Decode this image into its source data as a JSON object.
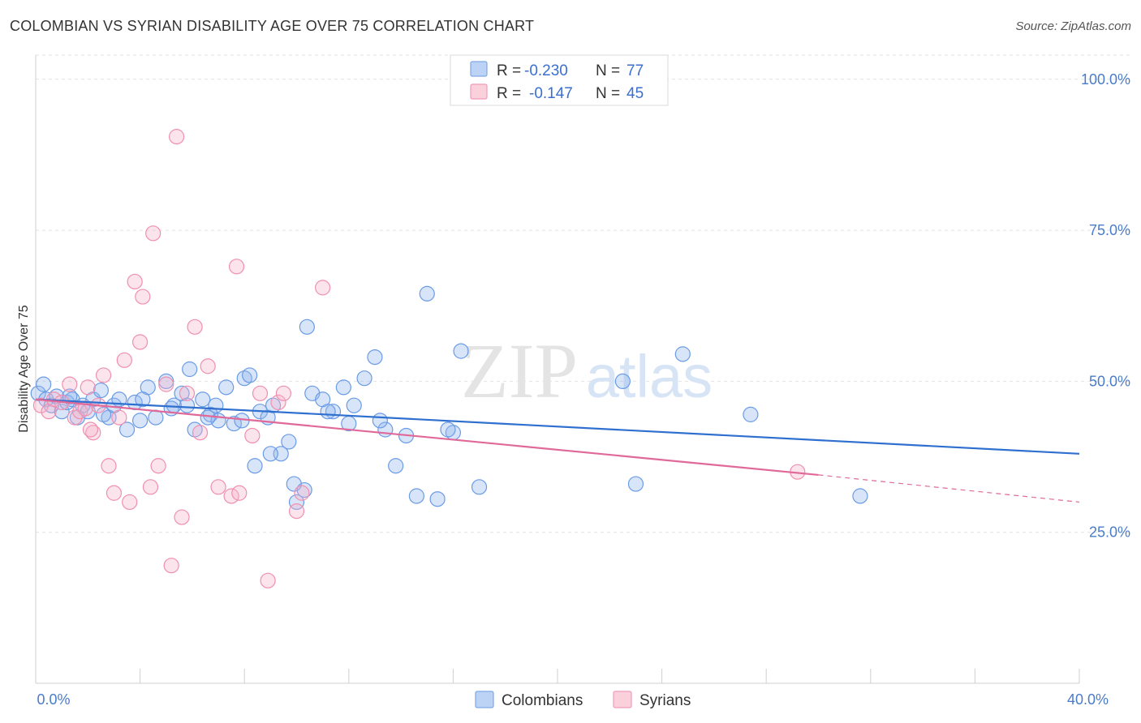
{
  "title": "COLOMBIAN VS SYRIAN DISABILITY AGE OVER 75 CORRELATION CHART",
  "source": "Source: ZipAtlas.com",
  "watermark": {
    "zip": "ZIP",
    "atlas": "atlas"
  },
  "legend": {
    "rows": [
      {
        "r_label": "R =",
        "r_value": "-0.230",
        "n_label": "N =",
        "n_value": "77",
        "color": "#8fb5ef"
      },
      {
        "r_label": "R =",
        "r_value": "-0.147",
        "n_label": "N =",
        "n_value": "45",
        "color": "#f5b3c8"
      }
    ]
  },
  "bottom_legend": [
    "Colombians",
    "Syrians"
  ],
  "chart_data": {
    "type": "scatter",
    "ylabel": "Disability Age Over 75",
    "xlim": [
      0,
      40
    ],
    "ylim": [
      0,
      104
    ],
    "x_tick_labels": [
      "0.0%",
      "40.0%"
    ],
    "y_ticks": [
      25,
      50,
      75,
      100
    ],
    "y_tick_labels": [
      "25.0%",
      "50.0%",
      "75.0%",
      "100.0%"
    ],
    "grid": true,
    "legend_position": "top-center",
    "series": [
      {
        "name": "Colombians",
        "color": "#6a9be6",
        "trend": {
          "x": [
            0,
            40
          ],
          "y": [
            47.0,
            38.0
          ]
        },
        "points": [
          [
            0.1,
            48
          ],
          [
            0.4,
            47
          ],
          [
            0.6,
            46
          ],
          [
            0.8,
            47.5
          ],
          [
            1.0,
            45
          ],
          [
            1.2,
            46.5
          ],
          [
            1.4,
            47
          ],
          [
            1.6,
            44
          ],
          [
            1.8,
            46
          ],
          [
            2.0,
            45
          ],
          [
            2.2,
            47
          ],
          [
            2.5,
            48.5
          ],
          [
            2.8,
            44
          ],
          [
            3.0,
            46
          ],
          [
            3.2,
            47
          ],
          [
            3.5,
            42
          ],
          [
            3.8,
            46.5
          ],
          [
            4.0,
            43.5
          ],
          [
            4.3,
            49
          ],
          [
            4.6,
            44
          ],
          [
            5.0,
            50
          ],
          [
            5.3,
            46
          ],
          [
            5.6,
            48
          ],
          [
            5.9,
            52
          ],
          [
            6.1,
            42
          ],
          [
            6.4,
            47
          ],
          [
            6.7,
            44.5
          ],
          [
            7.0,
            43.5
          ],
          [
            7.3,
            49
          ],
          [
            7.6,
            43
          ],
          [
            8.0,
            50.5
          ],
          [
            8.4,
            36
          ],
          [
            8.6,
            45
          ],
          [
            8.9,
            44
          ],
          [
            9.1,
            46
          ],
          [
            9.4,
            38
          ],
          [
            9.7,
            40
          ],
          [
            10.0,
            30
          ],
          [
            10.3,
            32
          ],
          [
            10.6,
            48
          ],
          [
            11.0,
            47
          ],
          [
            11.4,
            45
          ],
          [
            11.8,
            49
          ],
          [
            12.2,
            46
          ],
          [
            12.6,
            50.5
          ],
          [
            13.0,
            54
          ],
          [
            13.4,
            42
          ],
          [
            13.8,
            36
          ],
          [
            14.2,
            41
          ],
          [
            14.6,
            31
          ],
          [
            15.0,
            64.5
          ],
          [
            15.4,
            30.5
          ],
          [
            16.0,
            41.5
          ],
          [
            16.3,
            55
          ],
          [
            17.0,
            32.5
          ],
          [
            22.5,
            50
          ],
          [
            23.0,
            33
          ],
          [
            24.8,
            54.5
          ],
          [
            27.4,
            44.5
          ],
          [
            31.6,
            31
          ],
          [
            0.3,
            49.5
          ],
          [
            1.3,
            47.5
          ],
          [
            2.6,
            44.5
          ],
          [
            4.1,
            47
          ],
          [
            5.8,
            46
          ],
          [
            6.9,
            46
          ],
          [
            7.9,
            43.5
          ],
          [
            9.0,
            38
          ],
          [
            11.2,
            45
          ],
          [
            12.0,
            43
          ],
          [
            13.2,
            43.5
          ],
          [
            15.8,
            42
          ],
          [
            5.2,
            45.5
          ],
          [
            6.6,
            44
          ],
          [
            8.2,
            51
          ],
          [
            9.9,
            33
          ],
          [
            10.4,
            59
          ]
        ]
      },
      {
        "name": "Syrians",
        "color": "#f08fb0",
        "trend": {
          "x": [
            0,
            30
          ],
          "y": [
            47.0,
            34.5
          ]
        },
        "trend_dashed": {
          "x": [
            30,
            40
          ],
          "y": [
            34.5,
            30.0
          ]
        },
        "points": [
          [
            0.2,
            46
          ],
          [
            0.5,
            45
          ],
          [
            0.7,
            47
          ],
          [
            1.0,
            46.5
          ],
          [
            1.3,
            49.5
          ],
          [
            1.5,
            44
          ],
          [
            1.7,
            45
          ],
          [
            2.0,
            49
          ],
          [
            2.2,
            41.5
          ],
          [
            2.4,
            46
          ],
          [
            2.6,
            51
          ],
          [
            2.8,
            36
          ],
          [
            3.0,
            31.5
          ],
          [
            3.2,
            44
          ],
          [
            3.4,
            53.5
          ],
          [
            3.6,
            30
          ],
          [
            3.8,
            66.5
          ],
          [
            4.0,
            56.5
          ],
          [
            4.1,
            64
          ],
          [
            4.4,
            32.5
          ],
          [
            4.5,
            74.5
          ],
          [
            4.7,
            36
          ],
          [
            5.0,
            49.5
          ],
          [
            5.2,
            19.5
          ],
          [
            5.4,
            90.5
          ],
          [
            5.6,
            27.5
          ],
          [
            5.8,
            48
          ],
          [
            6.1,
            59
          ],
          [
            6.3,
            41.5
          ],
          [
            6.6,
            52.5
          ],
          [
            7.0,
            32.5
          ],
          [
            7.5,
            31
          ],
          [
            7.7,
            69
          ],
          [
            7.8,
            31.5
          ],
          [
            8.3,
            41
          ],
          [
            8.6,
            48
          ],
          [
            8.9,
            17
          ],
          [
            9.3,
            46.5
          ],
          [
            9.5,
            48
          ],
          [
            10.0,
            28.5
          ],
          [
            10.2,
            31.5
          ],
          [
            11.0,
            65.5
          ],
          [
            1.9,
            45.5
          ],
          [
            2.1,
            42
          ],
          [
            29.2,
            35
          ]
        ]
      }
    ]
  }
}
